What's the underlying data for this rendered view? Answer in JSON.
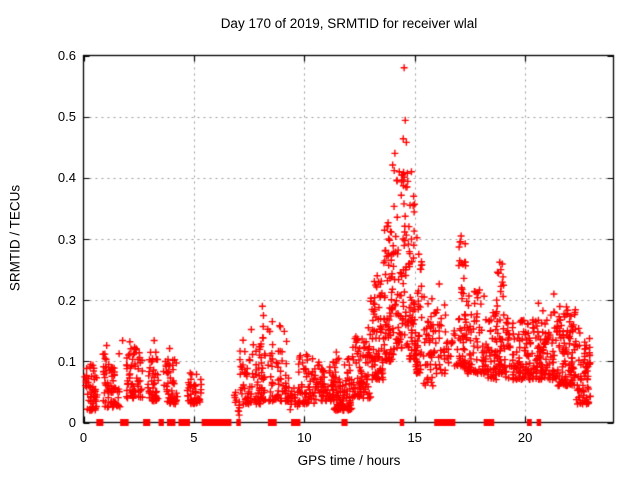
{
  "window": {
    "background": "#ffffff"
  },
  "chart_data": {
    "type": "scatter",
    "title": "Day 170 of 2019, SRMTID for receiver wlal",
    "xlabel": "GPS time / hours",
    "ylabel": "SRMTID / TECUs",
    "xlim": [
      0,
      24
    ],
    "ylim": [
      0,
      0.6
    ],
    "xticks": [
      0,
      5,
      10,
      15,
      20
    ],
    "xtick_labels": [
      "0",
      "5",
      "10",
      "15",
      "20"
    ],
    "yticks": [
      0,
      0.1,
      0.2,
      0.3,
      0.4,
      0.5,
      0.6
    ],
    "ytick_labels": [
      "0",
      "0.1",
      "0.2",
      "0.3",
      "0.4",
      "0.5",
      "0.6"
    ],
    "xgrid": [
      5,
      10,
      15,
      20
    ],
    "ygrid": [
      0.1,
      0.2,
      0.3,
      0.4,
      0.5
    ],
    "grid_on": true,
    "grid_style": "dashed",
    "legend": "none",
    "marker": "plus",
    "marker_color": "#ff0000",
    "grid_color": "#9b9b9b",
    "axis_color": "#000000",
    "seed": 170,
    "clusters": [
      {
        "x_start": 0.05,
        "x_end": 0.62,
        "y_min": 0.02,
        "y_max": 0.095,
        "count": 55,
        "skew": 1.8
      },
      {
        "x_start": 0.88,
        "x_end": 1.65,
        "y_min": 0.025,
        "y_max": 0.115,
        "count": 70,
        "skew": 1.8
      },
      {
        "x_start": 1.95,
        "x_end": 2.68,
        "y_min": 0.04,
        "y_max": 0.125,
        "count": 60,
        "skew": 1.8
      },
      {
        "x_start": 2.9,
        "x_end": 3.38,
        "y_min": 0.035,
        "y_max": 0.115,
        "count": 45,
        "skew": 1.8
      },
      {
        "x_start": 3.62,
        "x_end": 4.28,
        "y_min": 0.03,
        "y_max": 0.105,
        "count": 50,
        "skew": 1.8
      },
      {
        "x_start": 4.7,
        "x_end": 5.33,
        "y_min": 0.03,
        "y_max": 0.085,
        "count": 48,
        "skew": 1.8
      },
      {
        "x_start": 6.82,
        "x_end": 7.08,
        "y_min": 0.015,
        "y_max": 0.055,
        "count": 10,
        "skew": 1.5
      },
      {
        "x_start": 7.08,
        "x_end": 8.0,
        "y_min": 0.03,
        "y_max": 0.135,
        "count": 70,
        "skew": 1.9
      },
      {
        "x_start": 8.0,
        "x_end": 9.3,
        "y_min": 0.035,
        "y_max": 0.16,
        "count": 95,
        "skew": 2.0
      },
      {
        "x_start": 9.35,
        "x_end": 9.72,
        "y_min": 0.02,
        "y_max": 0.06,
        "count": 16,
        "skew": 1.5
      },
      {
        "x_start": 9.72,
        "x_end": 10.45,
        "y_min": 0.03,
        "y_max": 0.115,
        "count": 55,
        "skew": 1.9
      },
      {
        "x_start": 10.45,
        "x_end": 11.35,
        "y_min": 0.035,
        "y_max": 0.1,
        "count": 70,
        "skew": 1.8
      },
      {
        "x_start": 11.35,
        "x_end": 12.15,
        "y_min": 0.02,
        "y_max": 0.105,
        "count": 95,
        "skew": 2.2
      },
      {
        "x_start": 12.15,
        "x_end": 13.0,
        "y_min": 0.04,
        "y_max": 0.145,
        "count": 85,
        "skew": 1.8
      },
      {
        "x_start": 13.0,
        "x_end": 13.6,
        "y_min": 0.07,
        "y_max": 0.24,
        "count": 75,
        "skew": 1.8
      },
      {
        "x_start": 13.6,
        "x_end": 14.05,
        "y_min": 0.1,
        "y_max": 0.33,
        "count": 70,
        "skew": 1.8
      },
      {
        "x_start": 14.05,
        "x_end": 14.75,
        "y_min": 0.12,
        "y_max": 0.43,
        "count": 85,
        "skew": 1.8
      },
      {
        "x_start": 14.75,
        "x_end": 15.05,
        "y_min": 0.1,
        "y_max": 0.4,
        "count": 45,
        "skew": 1.9
      },
      {
        "x_start": 15.05,
        "x_end": 15.35,
        "y_min": 0.08,
        "y_max": 0.3,
        "count": 40,
        "skew": 1.9
      },
      {
        "x_start": 15.35,
        "x_end": 15.9,
        "y_min": 0.06,
        "y_max": 0.22,
        "count": 45,
        "skew": 2.0
      },
      {
        "x_start": 15.9,
        "x_end": 16.4,
        "y_min": 0.08,
        "y_max": 0.24,
        "count": 30,
        "skew": 1.8
      },
      {
        "x_start": 16.4,
        "x_end": 16.95,
        "y_min": 0.09,
        "y_max": 0.16,
        "count": 18,
        "skew": 1.5
      },
      {
        "x_start": 16.95,
        "x_end": 17.3,
        "y_min": 0.09,
        "y_max": 0.3,
        "count": 50,
        "skew": 1.9
      },
      {
        "x_start": 17.3,
        "x_end": 18.15,
        "y_min": 0.08,
        "y_max": 0.22,
        "count": 70,
        "skew": 1.8
      },
      {
        "x_start": 18.2,
        "x_end": 18.7,
        "y_min": 0.07,
        "y_max": 0.18,
        "count": 45,
        "skew": 1.8
      },
      {
        "x_start": 18.7,
        "x_end": 19.1,
        "y_min": 0.08,
        "y_max": 0.26,
        "count": 50,
        "skew": 1.8
      },
      {
        "x_start": 19.1,
        "x_end": 20.3,
        "y_min": 0.07,
        "y_max": 0.17,
        "count": 100,
        "skew": 1.7
      },
      {
        "x_start": 20.3,
        "x_end": 21.4,
        "y_min": 0.07,
        "y_max": 0.185,
        "count": 110,
        "skew": 1.7
      },
      {
        "x_start": 21.4,
        "x_end": 22.3,
        "y_min": 0.06,
        "y_max": 0.19,
        "count": 110,
        "skew": 1.6
      },
      {
        "x_start": 22.3,
        "x_end": 22.95,
        "y_min": 0.03,
        "y_max": 0.16,
        "count": 70,
        "skew": 1.5
      }
    ],
    "peak_points": [
      [
        14.52,
        0.58
      ],
      [
        14.57,
        0.494
      ],
      [
        14.48,
        0.464
      ],
      [
        14.62,
        0.458
      ],
      [
        14.1,
        0.44
      ],
      [
        14.0,
        0.421
      ],
      [
        14.3,
        0.41
      ],
      [
        14.45,
        0.405
      ],
      [
        14.2,
        0.395
      ],
      [
        14.65,
        0.385
      ],
      [
        14.85,
        0.41
      ],
      [
        14.95,
        0.37
      ],
      [
        13.9,
        0.312
      ],
      [
        13.82,
        0.3
      ],
      [
        15.1,
        0.302
      ],
      [
        17.1,
        0.305
      ],
      [
        17.05,
        0.295
      ],
      [
        18.85,
        0.262
      ],
      [
        18.9,
        0.25
      ],
      [
        8.1,
        0.19
      ],
      [
        8.15,
        0.175
      ],
      [
        8.55,
        0.165
      ],
      [
        7.6,
        0.152
      ],
      [
        13.3,
        0.24
      ],
      [
        21.3,
        0.21
      ],
      [
        20.6,
        0.195
      ],
      [
        12.9,
        0.155
      ],
      [
        11.45,
        0.115
      ],
      [
        2.1,
        0.132
      ],
      [
        3.2,
        0.134
      ],
      [
        1.05,
        0.126
      ],
      [
        3.9,
        0.121
      ],
      [
        1.77,
        0.134
      ],
      [
        7.05,
        0.012
      ],
      [
        9.55,
        0.04
      ]
    ],
    "zero_gap_bars": [
      [
        0.58,
        0.9
      ],
      [
        1.66,
        1.72
      ],
      [
        1.84,
        1.9
      ],
      [
        2.7,
        2.76
      ],
      [
        2.82,
        2.88
      ],
      [
        3.4,
        3.64
      ],
      [
        3.78,
        3.86
      ],
      [
        3.96,
        4.04
      ],
      [
        4.3,
        4.38
      ],
      [
        4.44,
        4.52
      ],
      [
        4.62,
        4.72
      ],
      [
        5.35,
        6.7
      ],
      [
        6.92,
        7.0
      ],
      [
        8.35,
        8.75
      ],
      [
        9.4,
        9.46
      ],
      [
        9.52,
        9.58
      ],
      [
        9.62,
        9.68
      ],
      [
        11.68,
        11.96
      ],
      [
        14.32,
        14.44
      ],
      [
        15.88,
        16.84
      ],
      [
        18.12,
        18.6
      ],
      [
        20.08,
        20.3
      ],
      [
        20.52,
        20.6
      ]
    ]
  }
}
